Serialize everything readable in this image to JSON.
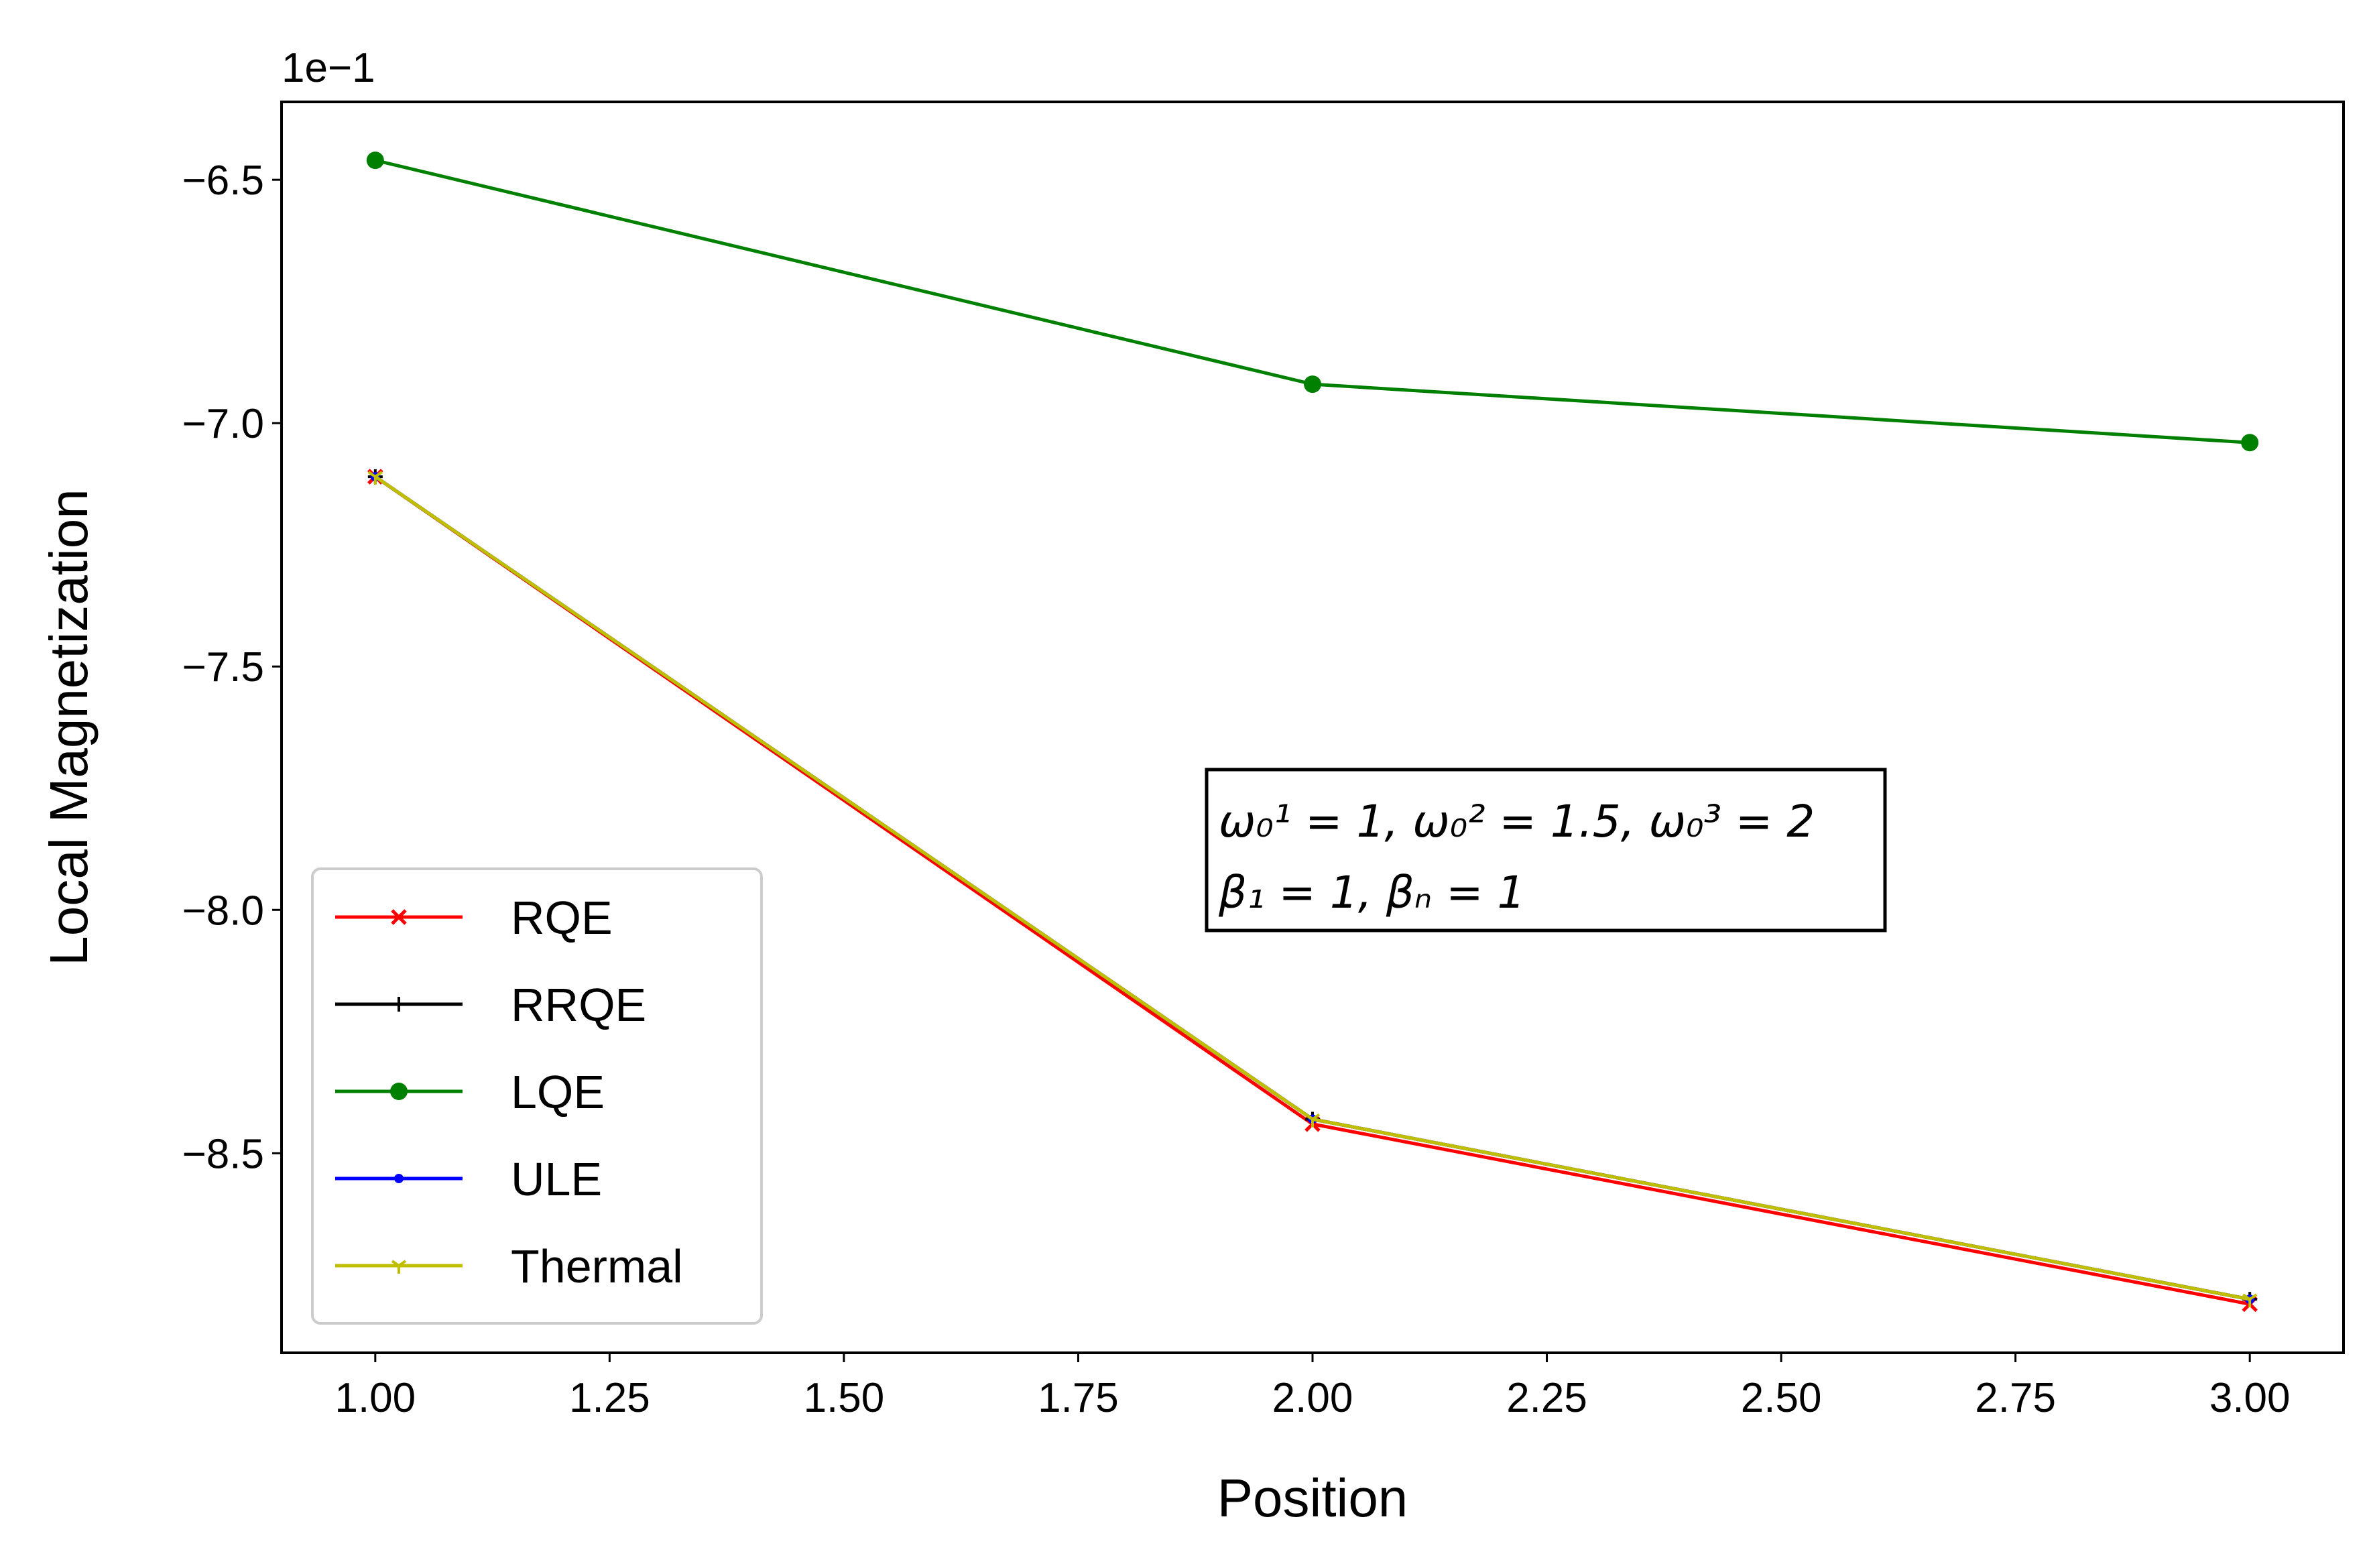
{
  "chart_data": {
    "type": "line",
    "xlabel": "Position",
    "ylabel": "Local Magnetization",
    "y_offset_label": "1e−1",
    "x_ticks": [
      "1.00",
      "1.25",
      "1.50",
      "1.75",
      "2.00",
      "2.25",
      "2.50",
      "2.75",
      "3.00"
    ],
    "y_ticks": [
      "−6.5",
      "−7.0",
      "−7.5",
      "−8.0",
      "−8.5"
    ],
    "xlim": [
      0.9,
      3.1
    ],
    "ylim": [
      -8.91,
      -6.34
    ],
    "x_tick_values": [
      1.0,
      1.25,
      1.5,
      1.75,
      2.0,
      2.25,
      2.5,
      2.75,
      3.0
    ],
    "y_tick_values": [
      -6.5,
      -7.0,
      -7.5,
      -8.0,
      -8.5
    ],
    "x": [
      1,
      2,
      3
    ],
    "grid": false,
    "legend_position": "lower-left",
    "series": [
      {
        "name": "RQE",
        "color": "#ff0000",
        "marker": "x",
        "values": [
          -7.11,
          -8.44,
          -8.81
        ]
      },
      {
        "name": "RRQE",
        "color": "#000000",
        "marker": "plus",
        "values": [
          -7.11,
          -8.43,
          -8.8
        ]
      },
      {
        "name": "LQE",
        "color": "#008000",
        "marker": "circle",
        "values": [
          -6.46,
          -6.92,
          -7.04
        ]
      },
      {
        "name": "ULE",
        "color": "#0000ff",
        "marker": "point",
        "values": [
          -7.11,
          -8.43,
          -8.8
        ]
      },
      {
        "name": "Thermal",
        "color": "#bfbf00",
        "marker": "tri",
        "values": [
          -7.11,
          -8.43,
          -8.8
        ]
      }
    ],
    "annotation": {
      "line1": "ω₀¹ = 1, ω₀² = 1.5, ω₀³ = 2",
      "line2": "β₁ = 1, βₙ = 1"
    }
  }
}
